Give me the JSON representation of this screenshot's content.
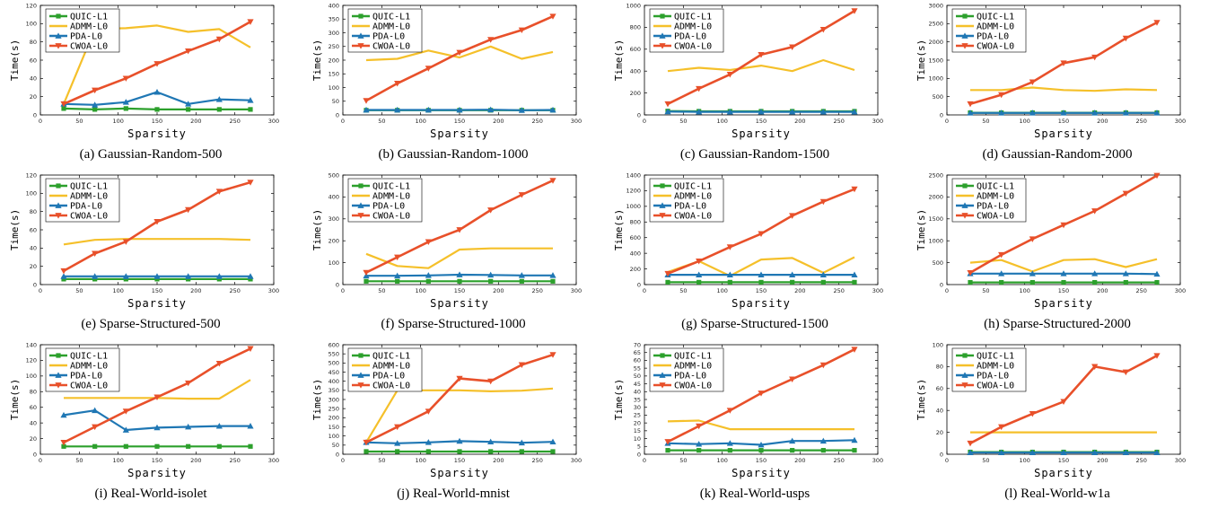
{
  "series_names": [
    "QUIC-L1",
    "ADMM-L0",
    "PDA-L0",
    "CWOA-L0"
  ],
  "series_colors": [
    "#2ca02c",
    "#f5c02a",
    "#1f77b4",
    "#e8502a"
  ],
  "series_markers": [
    "square",
    "none",
    "triangle-up",
    "triangle-down"
  ],
  "chart_data": [
    {
      "type": "line",
      "caption": "(a) Gaussian-Random-500",
      "xlabel": "Sparsity",
      "ylabel": "Time(s)",
      "xlim": [
        0,
        300
      ],
      "xticks": [
        0,
        50,
        100,
        150,
        200,
        250,
        300
      ],
      "ylim": [
        0,
        120
      ],
      "yticks": [
        0,
        20,
        40,
        60,
        80,
        100,
        120
      ],
      "x": [
        30,
        70,
        110,
        150,
        190,
        230,
        270
      ],
      "series": [
        {
          "name": "QUIC-L1",
          "values": [
            7,
            6,
            7,
            6,
            6,
            6,
            6
          ]
        },
        {
          "name": "ADMM-L0",
          "values": [
            12,
            94,
            95,
            98,
            91,
            94,
            74
          ]
        },
        {
          "name": "PDA-L0",
          "values": [
            12,
            11,
            14,
            25,
            12,
            17,
            16
          ]
        },
        {
          "name": "CWOA-L0",
          "values": [
            12,
            27,
            40,
            56,
            70,
            83,
            102
          ]
        }
      ]
    },
    {
      "type": "line",
      "caption": "(b) Gaussian-Random-1000",
      "xlabel": "Sparsity",
      "ylabel": "Time(s)",
      "xlim": [
        0,
        300
      ],
      "xticks": [
        0,
        50,
        100,
        150,
        200,
        250,
        300
      ],
      "ylim": [
        0,
        400
      ],
      "yticks": [
        0,
        50,
        100,
        150,
        200,
        250,
        300,
        350,
        400
      ],
      "x": [
        30,
        70,
        110,
        150,
        190,
        230,
        270
      ],
      "series": [
        {
          "name": "QUIC-L1",
          "values": [
            17,
            17,
            17,
            17,
            17,
            17,
            17
          ]
        },
        {
          "name": "ADMM-L0",
          "values": [
            200,
            205,
            235,
            210,
            250,
            205,
            230
          ]
        },
        {
          "name": "PDA-L0",
          "values": [
            18,
            18,
            18,
            18,
            19,
            17,
            18
          ]
        },
        {
          "name": "CWOA-L0",
          "values": [
            52,
            115,
            170,
            228,
            275,
            310,
            360
          ]
        }
      ]
    },
    {
      "type": "line",
      "caption": "(c) Gaussian-Random-1500",
      "xlabel": "Sparsity",
      "ylabel": "Time(s)",
      "xlim": [
        0,
        300
      ],
      "xticks": [
        0,
        50,
        100,
        150,
        200,
        250,
        300
      ],
      "ylim": [
        0,
        1000
      ],
      "yticks": [
        0,
        200,
        400,
        600,
        800,
        1000
      ],
      "x": [
        30,
        70,
        110,
        150,
        190,
        230,
        270
      ],
      "series": [
        {
          "name": "QUIC-L1",
          "values": [
            35,
            33,
            33,
            33,
            33,
            33,
            33
          ]
        },
        {
          "name": "ADMM-L0",
          "values": [
            400,
            430,
            410,
            450,
            400,
            500,
            410
          ]
        },
        {
          "name": "PDA-L0",
          "values": [
            30,
            28,
            28,
            28,
            28,
            28,
            28
          ]
        },
        {
          "name": "CWOA-L0",
          "values": [
            100,
            240,
            370,
            550,
            620,
            780,
            950
          ]
        }
      ]
    },
    {
      "type": "line",
      "caption": "(d) Gaussian-Random-2000",
      "xlabel": "Sparsity",
      "ylabel": "Time(s)",
      "xlim": [
        0,
        300
      ],
      "xticks": [
        0,
        50,
        100,
        150,
        200,
        250,
        300
      ],
      "ylim": [
        0,
        3000
      ],
      "yticks": [
        0,
        500,
        1000,
        1500,
        2000,
        2500,
        3000
      ],
      "x": [
        30,
        70,
        110,
        150,
        190,
        230,
        270
      ],
      "series": [
        {
          "name": "QUIC-L1",
          "values": [
            60,
            60,
            60,
            60,
            60,
            60,
            60
          ]
        },
        {
          "name": "ADMM-L0",
          "values": [
            680,
            680,
            750,
            680,
            660,
            700,
            680
          ]
        },
        {
          "name": "PDA-L0",
          "values": [
            55,
            55,
            55,
            55,
            55,
            55,
            55
          ]
        },
        {
          "name": "CWOA-L0",
          "values": [
            300,
            550,
            900,
            1420,
            1580,
            2100,
            2530
          ]
        }
      ]
    },
    {
      "type": "line",
      "caption": "(e) Sparse-Structured-500",
      "xlabel": "Sparsity",
      "ylabel": "Time(s)",
      "xlim": [
        0,
        300
      ],
      "xticks": [
        0,
        50,
        100,
        150,
        200,
        250,
        300
      ],
      "ylim": [
        0,
        120
      ],
      "yticks": [
        0,
        20,
        40,
        60,
        80,
        100,
        120
      ],
      "x": [
        30,
        70,
        110,
        150,
        190,
        230,
        270
      ],
      "series": [
        {
          "name": "QUIC-L1",
          "values": [
            6,
            6,
            6,
            6,
            6,
            6,
            6
          ]
        },
        {
          "name": "ADMM-L0",
          "values": [
            44,
            49,
            50,
            50,
            50,
            50,
            49
          ]
        },
        {
          "name": "PDA-L0",
          "values": [
            9,
            9,
            9,
            9,
            9,
            9,
            9
          ]
        },
        {
          "name": "CWOA-L0",
          "values": [
            15,
            34,
            47,
            69,
            82,
            102,
            112
          ]
        }
      ]
    },
    {
      "type": "line",
      "caption": "(f) Sparse-Structured-1000",
      "xlabel": "Sparsity",
      "ylabel": "Time(s)",
      "xlim": [
        0,
        300
      ],
      "xticks": [
        0,
        50,
        100,
        150,
        200,
        250,
        300
      ],
      "ylim": [
        0,
        500
      ],
      "yticks": [
        0,
        100,
        200,
        300,
        400,
        500
      ],
      "x": [
        30,
        70,
        110,
        150,
        190,
        230,
        270
      ],
      "series": [
        {
          "name": "QUIC-L1",
          "values": [
            15,
            15,
            15,
            15,
            15,
            15,
            15
          ]
        },
        {
          "name": "ADMM-L0",
          "values": [
            140,
            85,
            75,
            160,
            165,
            165,
            165
          ]
        },
        {
          "name": "PDA-L0",
          "values": [
            40,
            40,
            42,
            45,
            44,
            42,
            42
          ]
        },
        {
          "name": "CWOA-L0",
          "values": [
            55,
            125,
            195,
            250,
            340,
            410,
            475
          ]
        }
      ]
    },
    {
      "type": "line",
      "caption": "(g) Sparse-Structured-1500",
      "xlabel": "Sparsity",
      "ylabel": "Time(s)",
      "xlim": [
        0,
        300
      ],
      "xticks": [
        0,
        50,
        100,
        150,
        200,
        250,
        300
      ],
      "ylim": [
        0,
        1400
      ],
      "yticks": [
        0,
        200,
        400,
        600,
        800,
        1000,
        1200,
        1400
      ],
      "x": [
        30,
        70,
        110,
        150,
        190,
        230,
        270
      ],
      "series": [
        {
          "name": "QUIC-L1",
          "values": [
            30,
            30,
            30,
            30,
            30,
            30,
            30
          ]
        },
        {
          "name": "ADMM-L0",
          "values": [
            160,
            300,
            110,
            320,
            340,
            150,
            350
          ]
        },
        {
          "name": "PDA-L0",
          "values": [
            125,
            125,
            125,
            125,
            125,
            125,
            125
          ]
        },
        {
          "name": "CWOA-L0",
          "values": [
            140,
            300,
            480,
            650,
            880,
            1060,
            1220
          ]
        }
      ]
    },
    {
      "type": "line",
      "caption": "(h) Sparse-Structured-2000",
      "xlabel": "Sparsity",
      "ylabel": "Time(s)",
      "xlim": [
        0,
        300
      ],
      "xticks": [
        0,
        50,
        100,
        150,
        200,
        250,
        300
      ],
      "ylim": [
        0,
        2500
      ],
      "yticks": [
        0,
        500,
        1000,
        1500,
        2000,
        2500
      ],
      "x": [
        30,
        70,
        110,
        150,
        190,
        230,
        270
      ],
      "series": [
        {
          "name": "QUIC-L1",
          "values": [
            50,
            50,
            50,
            50,
            50,
            50,
            50
          ]
        },
        {
          "name": "ADMM-L0",
          "values": [
            500,
            560,
            300,
            560,
            580,
            400,
            580
          ]
        },
        {
          "name": "PDA-L0",
          "values": [
            250,
            250,
            250,
            250,
            250,
            250,
            240
          ]
        },
        {
          "name": "CWOA-L0",
          "values": [
            270,
            680,
            1040,
            1360,
            1680,
            2080,
            2490
          ]
        }
      ]
    },
    {
      "type": "line",
      "caption": "(i) Real-World-isolet",
      "xlabel": "Sparsity",
      "ylabel": "Time(s)",
      "xlim": [
        0,
        300
      ],
      "xticks": [
        0,
        50,
        100,
        150,
        200,
        250,
        300
      ],
      "ylim": [
        0,
        140
      ],
      "yticks": [
        0,
        20,
        40,
        60,
        80,
        100,
        120,
        140
      ],
      "x": [
        30,
        70,
        110,
        150,
        190,
        230,
        270
      ],
      "series": [
        {
          "name": "QUIC-L1",
          "values": [
            10,
            10,
            10,
            10,
            10,
            10,
            10
          ]
        },
        {
          "name": "ADMM-L0",
          "values": [
            72,
            72,
            72,
            72,
            71,
            71,
            95
          ]
        },
        {
          "name": "PDA-L0",
          "values": [
            50,
            56,
            31,
            34,
            35,
            36,
            36
          ]
        },
        {
          "name": "CWOA-L0",
          "values": [
            15,
            35,
            55,
            73,
            91,
            116,
            135
          ]
        }
      ]
    },
    {
      "type": "line",
      "caption": "(j) Real-World-mnist",
      "xlabel": "Sparsity",
      "ylabel": "Time(s)",
      "xlim": [
        0,
        300
      ],
      "xticks": [
        0,
        50,
        100,
        150,
        200,
        250,
        300
      ],
      "ylim": [
        0,
        600
      ],
      "yticks": [
        0,
        50,
        100,
        150,
        200,
        250,
        300,
        350,
        400,
        450,
        500,
        550,
        600
      ],
      "x": [
        30,
        70,
        110,
        150,
        190,
        230,
        270
      ],
      "series": [
        {
          "name": "QUIC-L1",
          "values": [
            15,
            15,
            15,
            15,
            15,
            15,
            15
          ]
        },
        {
          "name": "ADMM-L0",
          "values": [
            65,
            350,
            350,
            350,
            345,
            348,
            360
          ]
        },
        {
          "name": "PDA-L0",
          "values": [
            65,
            60,
            65,
            72,
            68,
            63,
            68
          ]
        },
        {
          "name": "CWOA-L0",
          "values": [
            65,
            150,
            235,
            415,
            400,
            490,
            545
          ]
        }
      ]
    },
    {
      "type": "line",
      "caption": "(k) Real-World-usps",
      "xlabel": "Sparsity",
      "ylabel": "Time(s)",
      "xlim": [
        0,
        300
      ],
      "xticks": [
        0,
        50,
        100,
        150,
        200,
        250,
        300
      ],
      "ylim": [
        0,
        70
      ],
      "yticks": [
        0,
        5,
        10,
        15,
        20,
        25,
        30,
        35,
        40,
        45,
        50,
        55,
        60,
        65,
        70
      ],
      "x": [
        30,
        70,
        110,
        150,
        190,
        230,
        270
      ],
      "series": [
        {
          "name": "QUIC-L1",
          "values": [
            2.5,
            2.5,
            2.5,
            2.5,
            2.5,
            2.5,
            2.5
          ]
        },
        {
          "name": "ADMM-L0",
          "values": [
            21,
            21.5,
            16,
            16,
            16,
            16,
            16
          ]
        },
        {
          "name": "PDA-L0",
          "values": [
            7,
            6.5,
            7,
            6,
            8.5,
            8.5,
            9
          ]
        },
        {
          "name": "CWOA-L0",
          "values": [
            8,
            18,
            28,
            39,
            48,
            57,
            67
          ]
        }
      ]
    },
    {
      "type": "line",
      "caption": "(l) Real-World-w1a",
      "xlabel": "Sparsity",
      "ylabel": "Time(s)",
      "xlim": [
        0,
        300
      ],
      "xticks": [
        0,
        50,
        100,
        150,
        200,
        250,
        300
      ],
      "ylim": [
        0,
        100
      ],
      "yticks": [
        0,
        20,
        40,
        60,
        80,
        100
      ],
      "x": [
        30,
        70,
        110,
        150,
        190,
        230,
        270
      ],
      "series": [
        {
          "name": "QUIC-L1",
          "values": [
            2,
            2,
            2,
            2,
            2,
            2,
            2
          ]
        },
        {
          "name": "ADMM-L0",
          "values": [
            20,
            20,
            20,
            20,
            20,
            20,
            20
          ]
        },
        {
          "name": "PDA-L0",
          "values": [
            1.5,
            1.5,
            1.5,
            1.5,
            1.5,
            1.5,
            1.5
          ]
        },
        {
          "name": "CWOA-L0",
          "values": [
            10,
            25,
            37,
            48,
            80,
            75,
            90
          ]
        }
      ]
    }
  ]
}
